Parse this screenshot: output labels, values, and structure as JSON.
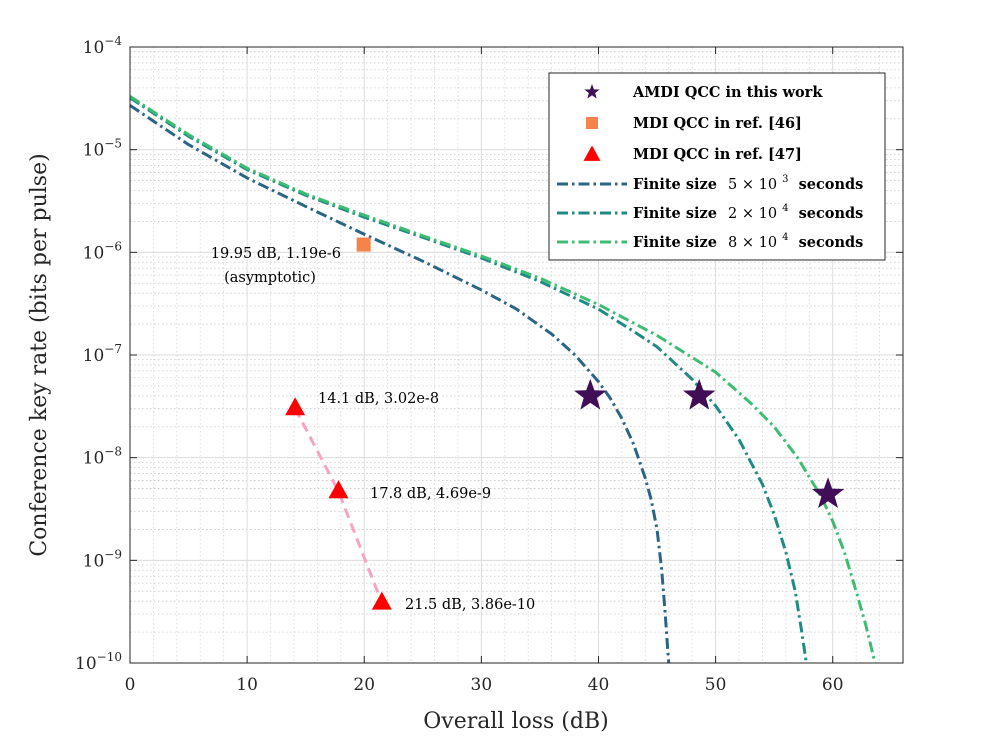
{
  "chart_data": {
    "type": "line",
    "xlabel": "Overall loss (dB)",
    "ylabel": "Conference key rate (bits per pulse)",
    "xlim": [
      0,
      66
    ],
    "ylim": [
      1e-10,
      0.0001
    ],
    "yscale": "log",
    "grid": true,
    "minor_grid": true,
    "legend_position": "top-right",
    "x_ticks": [
      "0",
      "10",
      "20",
      "30",
      "40",
      "50",
      "60"
    ],
    "x_tick_values": [
      0,
      10,
      20,
      30,
      40,
      50,
      60
    ],
    "y_ticks": [
      {
        "base": "10",
        "exp": "−4",
        "value": 0.0001
      },
      {
        "base": "10",
        "exp": "−5",
        "value": 1e-05
      },
      {
        "base": "10",
        "exp": "−6",
        "value": 1e-06
      },
      {
        "base": "10",
        "exp": "−7",
        "value": 1e-07
      },
      {
        "base": "10",
        "exp": "−8",
        "value": 1e-08
      },
      {
        "base": "10",
        "exp": "−9",
        "value": 1e-09
      },
      {
        "base": "10",
        "exp": "−10",
        "value": 1e-10
      }
    ],
    "series": [
      {
        "name": "AMDI QCC in this work",
        "kind": "star",
        "color": "#3f0e57",
        "x": [
          39.3,
          48.6,
          59.6
        ],
        "y": [
          4e-08,
          4e-08,
          4.4e-09
        ]
      },
      {
        "name": "MDI QCC in ref. [46]",
        "kind": "square",
        "color": "#f5844b",
        "x": [
          19.95
        ],
        "y": [
          1.19e-06
        ]
      },
      {
        "name": "MDI QCC in ref. [47]",
        "kind": "triangle",
        "color": "#ff0000",
        "line_color": "#f7a3c4",
        "x": [
          14.1,
          17.8,
          21.5
        ],
        "y": [
          3.02e-08,
          4.69e-09,
          3.86e-10
        ]
      },
      {
        "name": "Finite size 5 × 10^3 seconds",
        "label_main": "Finite size",
        "label_math": "5 × 10",
        "label_exp": "3",
        "label_end": "seconds",
        "kind": "dashdot",
        "color": "#2b6584",
        "x": [
          0,
          5,
          10,
          15,
          20,
          25,
          30,
          33,
          36,
          38,
          40,
          41,
          42,
          43,
          44,
          44.5,
          45,
          45.4,
          45.7,
          45.9,
          46.0
        ],
        "y": [
          2.7e-05,
          1.12e-05,
          5.3e-06,
          2.8e-06,
          1.5e-06,
          8.2e-07,
          4.3e-07,
          2.8e-07,
          1.6e-07,
          1e-07,
          5.5e-08,
          3.8e-08,
          2.4e-08,
          1.35e-08,
          6.3e-09,
          3.9e-09,
          2e-09,
          8e-10,
          3e-10,
          1.4e-10,
          1e-10
        ]
      },
      {
        "name": "Finite size 2 × 10^4 seconds",
        "label_main": "Finite size",
        "label_math": "2 × 10",
        "label_exp": "4",
        "label_end": "seconds",
        "kind": "dashdot",
        "color": "#1f8a84",
        "x": [
          0,
          5,
          10,
          15,
          20,
          25,
          30,
          35,
          40,
          43,
          45,
          48,
          50,
          52,
          54,
          55,
          56,
          56.8,
          57.3,
          57.6,
          57.75
        ],
        "y": [
          3.2e-05,
          1.35e-05,
          6.4e-06,
          3.6e-06,
          2.2e-06,
          1.4e-06,
          8.8e-07,
          5.2e-07,
          2.8e-07,
          1.7e-07,
          1.2e-07,
          5.8e-08,
          3.2e-08,
          1.5e-08,
          5.5e-09,
          2.8e-09,
          1.2e-09,
          5e-10,
          2.2e-10,
          1.3e-10,
          1e-10
        ]
      },
      {
        "name": "Finite size 8 × 10^4 seconds",
        "label_main": "Finite size",
        "label_math": "8 × 10",
        "label_exp": "4",
        "label_end": "seconds",
        "kind": "dashdot",
        "color": "#3ebc74",
        "x": [
          0,
          5,
          10,
          15,
          20,
          25,
          30,
          35,
          40,
          45,
          50,
          53,
          55,
          57,
          59,
          60,
          61,
          62,
          62.8,
          63.3,
          63.6
        ],
        "y": [
          3.3e-05,
          1.4e-05,
          6.6e-06,
          3.7e-06,
          2.3e-06,
          1.45e-06,
          9.2e-07,
          5.6e-07,
          3.1e-07,
          1.55e-07,
          6.8e-08,
          3.4e-08,
          2e-08,
          1e-08,
          4.2e-09,
          2.4e-09,
          1.2e-09,
          5e-10,
          2.4e-10,
          1.4e-10,
          1e-10
        ]
      }
    ],
    "annotations": [
      {
        "id": "ann-ref46-a",
        "text": "19.95 dB, 1.19e-6"
      },
      {
        "id": "ann-ref46-b",
        "text": "(asymptotic)"
      },
      {
        "id": "ann-ref47-1",
        "text": "14.1 dB, 3.02e-8"
      },
      {
        "id": "ann-ref47-2",
        "text": "17.8 dB, 4.69e-9"
      },
      {
        "id": "ann-ref47-3",
        "text": "21.5 dB, 3.86e-10"
      }
    ]
  }
}
